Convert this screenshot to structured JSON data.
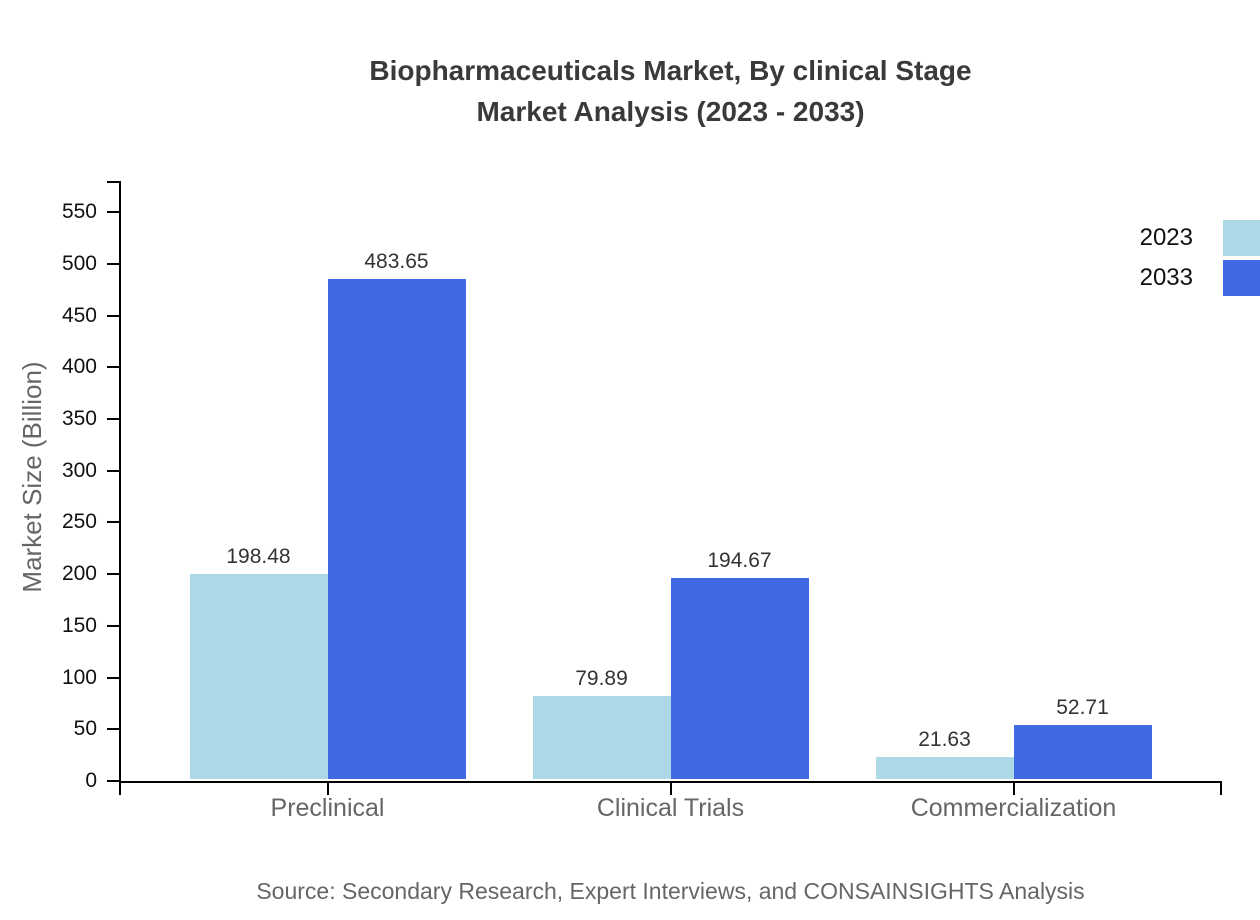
{
  "page": {
    "title_line1": "Biopharmaceuticals Market, By clinical Stage",
    "title_line2": "Market Analysis (2023 - 2033)",
    "source": "Source: Secondary Research, Expert Interviews, and CONSAINSIGHTS Analysis"
  },
  "chart_data": {
    "type": "bar",
    "title": "Biopharmaceuticals Market, By clinical Stage Market Analysis (2023 - 2033)",
    "categories": [
      "Preclinical",
      "Clinical Trials",
      "Commercialization"
    ],
    "series": [
      {
        "name": "2023",
        "color": "#ADD8E6",
        "values": [
          198.48,
          79.89,
          21.63
        ]
      },
      {
        "name": "2033",
        "color": "#4169E1",
        "values": [
          483.65,
          194.67,
          52.71
        ]
      }
    ],
    "xlabel": "",
    "ylabel": "Market Size (Billion)",
    "ylim": [
      0,
      580
    ],
    "yticks": [
      0,
      50,
      100,
      150,
      200,
      250,
      300,
      350,
      400,
      450,
      500,
      550
    ],
    "grid": false,
    "legend_position": "top-right",
    "value_labels": true,
    "axis_color": "#000000",
    "value_label_color": "#333333",
    "tick_label_color": "#111111",
    "category_label_color": "#666666"
  }
}
